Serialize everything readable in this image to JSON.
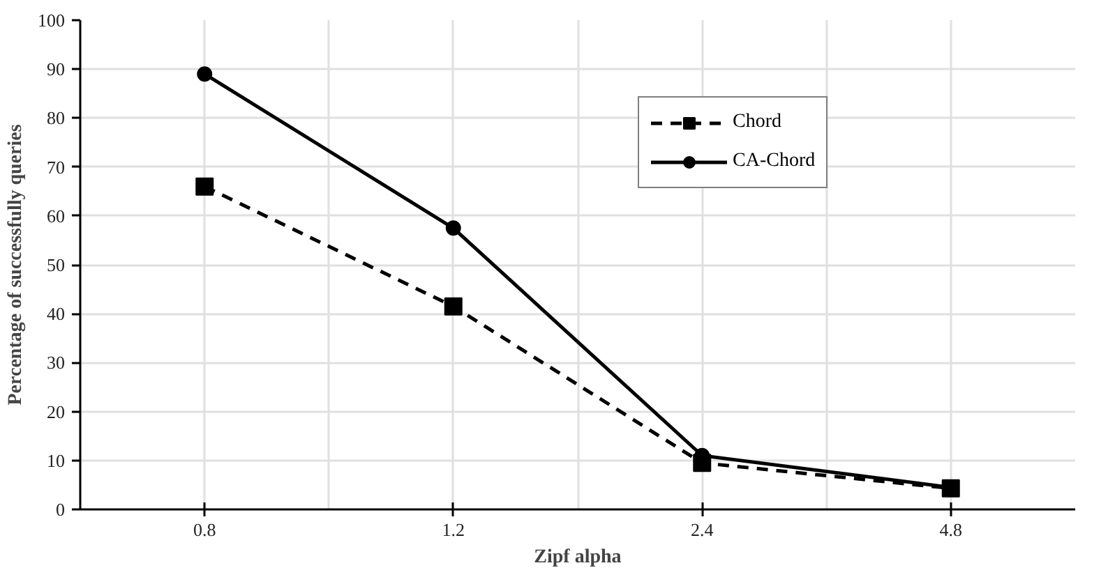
{
  "chart_data": {
    "type": "line",
    "xlabel": "Zipf alpha",
    "ylabel": "Percentage of successfully queries",
    "categories": [
      "0.8",
      "1.2",
      "2.4",
      "4.8"
    ],
    "series": [
      {
        "name": "Chord",
        "color": "#000000",
        "values": [
          66,
          41.5,
          9.5,
          4.3
        ],
        "marker": "square",
        "line_style": "dashed"
      },
      {
        "name": "CA-Chord",
        "color": "#000000",
        "values": [
          89,
          57.5,
          11,
          4.5
        ],
        "marker": "circle",
        "line_style": "solid"
      }
    ],
    "ylim": [
      0,
      100
    ],
    "yticks": [
      0,
      10,
      20,
      30,
      40,
      50,
      60,
      70,
      80,
      90,
      100
    ],
    "grid": true,
    "legend": "right"
  }
}
